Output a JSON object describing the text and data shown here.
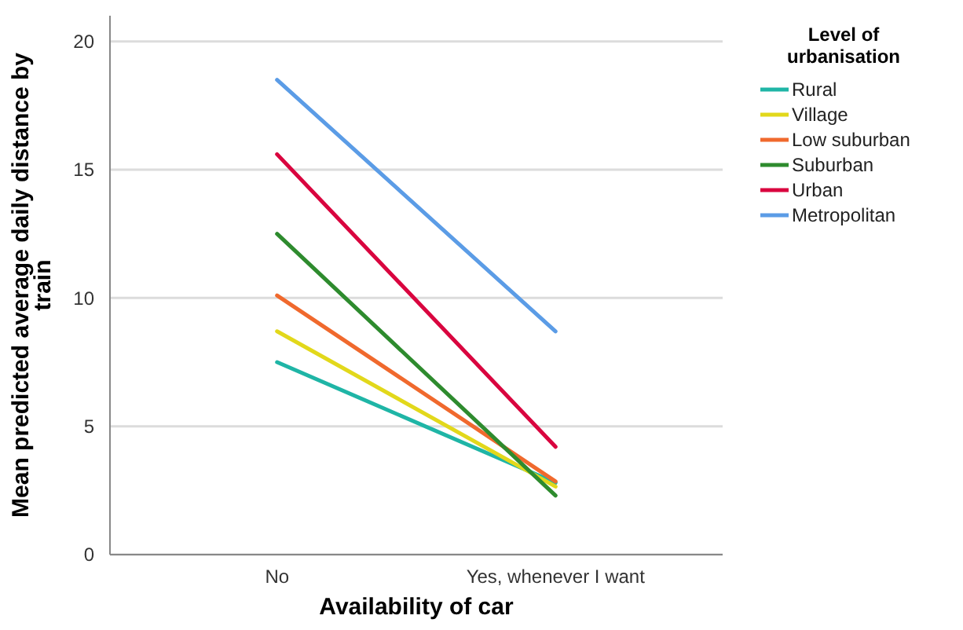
{
  "chart_data": {
    "type": "line",
    "xlabel": "Availability of car",
    "ylabel": "Mean predicted average daily distance by train",
    "legend_title": "Level of urbanisation",
    "categories": [
      "No",
      "Yes, whenever I want"
    ],
    "series": [
      {
        "name": "Rural",
        "color": "#1fb5a6",
        "values": [
          7.5,
          2.8
        ]
      },
      {
        "name": "Village",
        "color": "#e2d81b",
        "values": [
          8.7,
          2.65
        ]
      },
      {
        "name": "Low suburban",
        "color": "#f0692d",
        "values": [
          10.1,
          2.85
        ]
      },
      {
        "name": "Suburban",
        "color": "#2e8b2e",
        "values": [
          12.5,
          2.3
        ]
      },
      {
        "name": "Urban",
        "color": "#d9053f",
        "values": [
          15.6,
          4.2
        ]
      },
      {
        "name": "Metropolitan",
        "color": "#5b9ce6",
        "values": [
          18.5,
          8.7
        ]
      }
    ],
    "ylim": [
      0,
      21
    ],
    "yticks": [
      0,
      5,
      10,
      15,
      20
    ],
    "grid": "y",
    "legend": "right",
    "marker": "none",
    "line_style": "solid"
  }
}
